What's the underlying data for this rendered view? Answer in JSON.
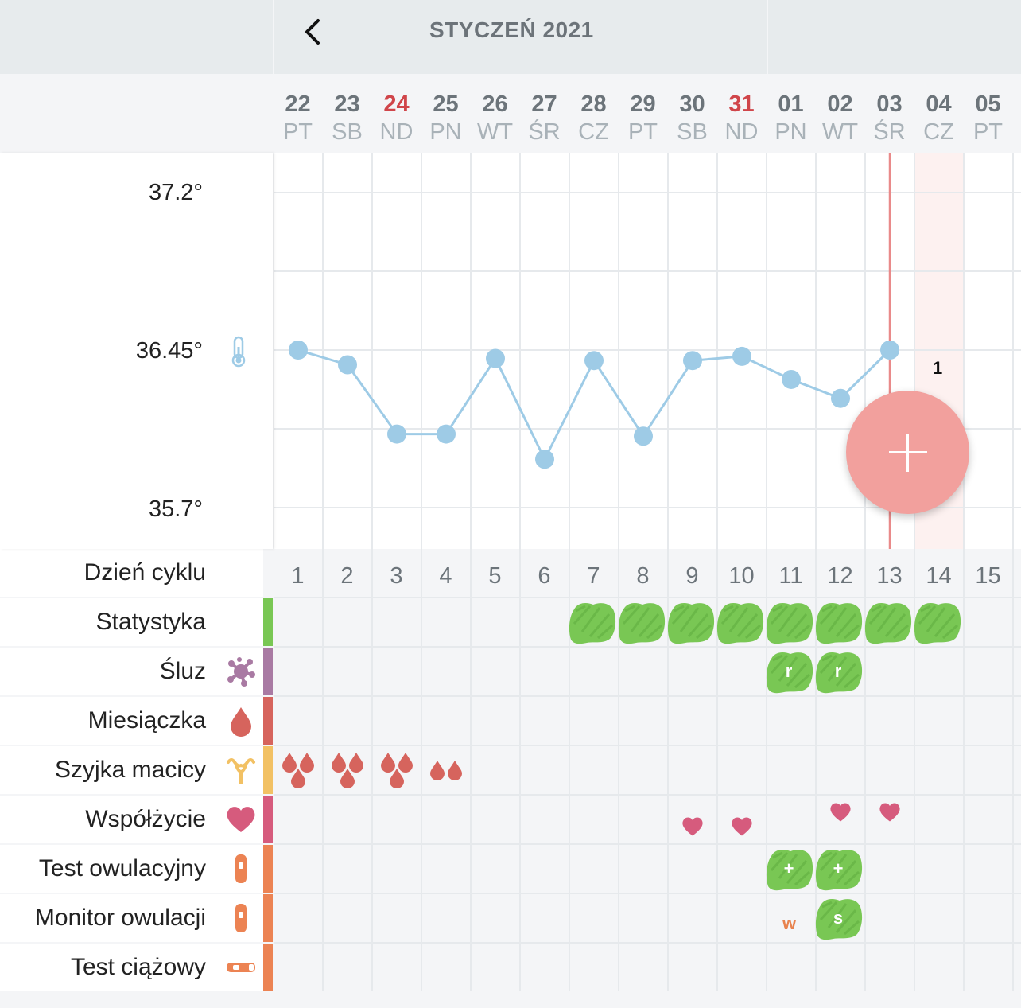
{
  "header": {
    "title": "STYCZEŃ 2021",
    "back_icon": "chevron-left-icon"
  },
  "days": [
    {
      "num": "22",
      "dow": "PT",
      "sunday": false,
      "cycle": "1"
    },
    {
      "num": "23",
      "dow": "SB",
      "sunday": false,
      "cycle": "2"
    },
    {
      "num": "24",
      "dow": "ND",
      "sunday": true,
      "cycle": "3"
    },
    {
      "num": "25",
      "dow": "PN",
      "sunday": false,
      "cycle": "4"
    },
    {
      "num": "26",
      "dow": "WT",
      "sunday": false,
      "cycle": "5"
    },
    {
      "num": "27",
      "dow": "ŚR",
      "sunday": false,
      "cycle": "6"
    },
    {
      "num": "28",
      "dow": "CZ",
      "sunday": false,
      "cycle": "7"
    },
    {
      "num": "29",
      "dow": "PT",
      "sunday": false,
      "cycle": "8"
    },
    {
      "num": "30",
      "dow": "SB",
      "sunday": false,
      "cycle": "9"
    },
    {
      "num": "31",
      "dow": "ND",
      "sunday": true,
      "cycle": "10"
    },
    {
      "num": "01",
      "dow": "PN",
      "sunday": false,
      "cycle": "11"
    },
    {
      "num": "02",
      "dow": "WT",
      "sunday": false,
      "cycle": "12"
    },
    {
      "num": "03",
      "dow": "ŚR",
      "sunday": false,
      "cycle": "13"
    },
    {
      "num": "04",
      "dow": "CZ",
      "sunday": false,
      "cycle": "14"
    },
    {
      "num": "05",
      "dow": "PT",
      "sunday": false,
      "cycle": "15"
    }
  ],
  "chart": {
    "y_labels": [
      "37.2°",
      "36.45°",
      "35.7°"
    ],
    "thermometer_icon": "thermometer-icon",
    "today_badge": "1",
    "today_index": 12,
    "colors": {
      "line": "#9ecbe6",
      "point": "#9ecbe6",
      "today_line": "#e98a8a",
      "future_shade": "#fdf1f0"
    }
  },
  "chart_data": {
    "type": "line",
    "title": "",
    "xlabel": "",
    "ylabel": "",
    "categories": [
      "22",
      "23",
      "24",
      "25",
      "26",
      "27",
      "28",
      "29",
      "30",
      "31",
      "01",
      "02",
      "03"
    ],
    "x": [
      1,
      2,
      3,
      4,
      5,
      6,
      7,
      8,
      9,
      10,
      11,
      12,
      13
    ],
    "values": [
      36.45,
      36.38,
      36.05,
      36.05,
      36.41,
      35.93,
      36.4,
      36.04,
      36.4,
      36.42,
      36.31,
      36.22,
      36.45
    ],
    "ylim": [
      35.6,
      37.3
    ],
    "y_ticks": [
      35.7,
      36.45,
      37.2
    ],
    "grid": true
  },
  "rows": {
    "cycle_day": "Dzień cyklu",
    "stats": {
      "label": "Statystyka",
      "color": "#79c754"
    },
    "mucus": {
      "label": "Śluz",
      "icon": "mucus-icon",
      "color": "#a97aa3",
      "mark_text": "r"
    },
    "period": {
      "label": "Miesiączka",
      "icon": "blood-drop-icon",
      "color": "#d6645d"
    },
    "cervix": {
      "label": "Szyjka macicy",
      "icon": "uterus-icon",
      "color": "#f2c164"
    },
    "intercourse": {
      "label": "Współżycie",
      "icon": "heart-icon",
      "color": "#d65b7d"
    },
    "ovulation_test": {
      "label": "Test owulacyjny",
      "icon": "ovulation-test-icon",
      "color": "#ec8353",
      "mark_text": "+"
    },
    "ovulation_monitor": {
      "label": "Monitor owulacji",
      "icon": "ovulation-monitor-icon",
      "color": "#ec8353",
      "w_text": "w",
      "s_text": "s"
    },
    "pregnancy_test": {
      "label": "Test ciążowy",
      "icon": "pregnancy-test-icon",
      "color": "#ec8353"
    }
  },
  "fab": {
    "icon": "plus-icon",
    "color": "#f2a09d"
  }
}
